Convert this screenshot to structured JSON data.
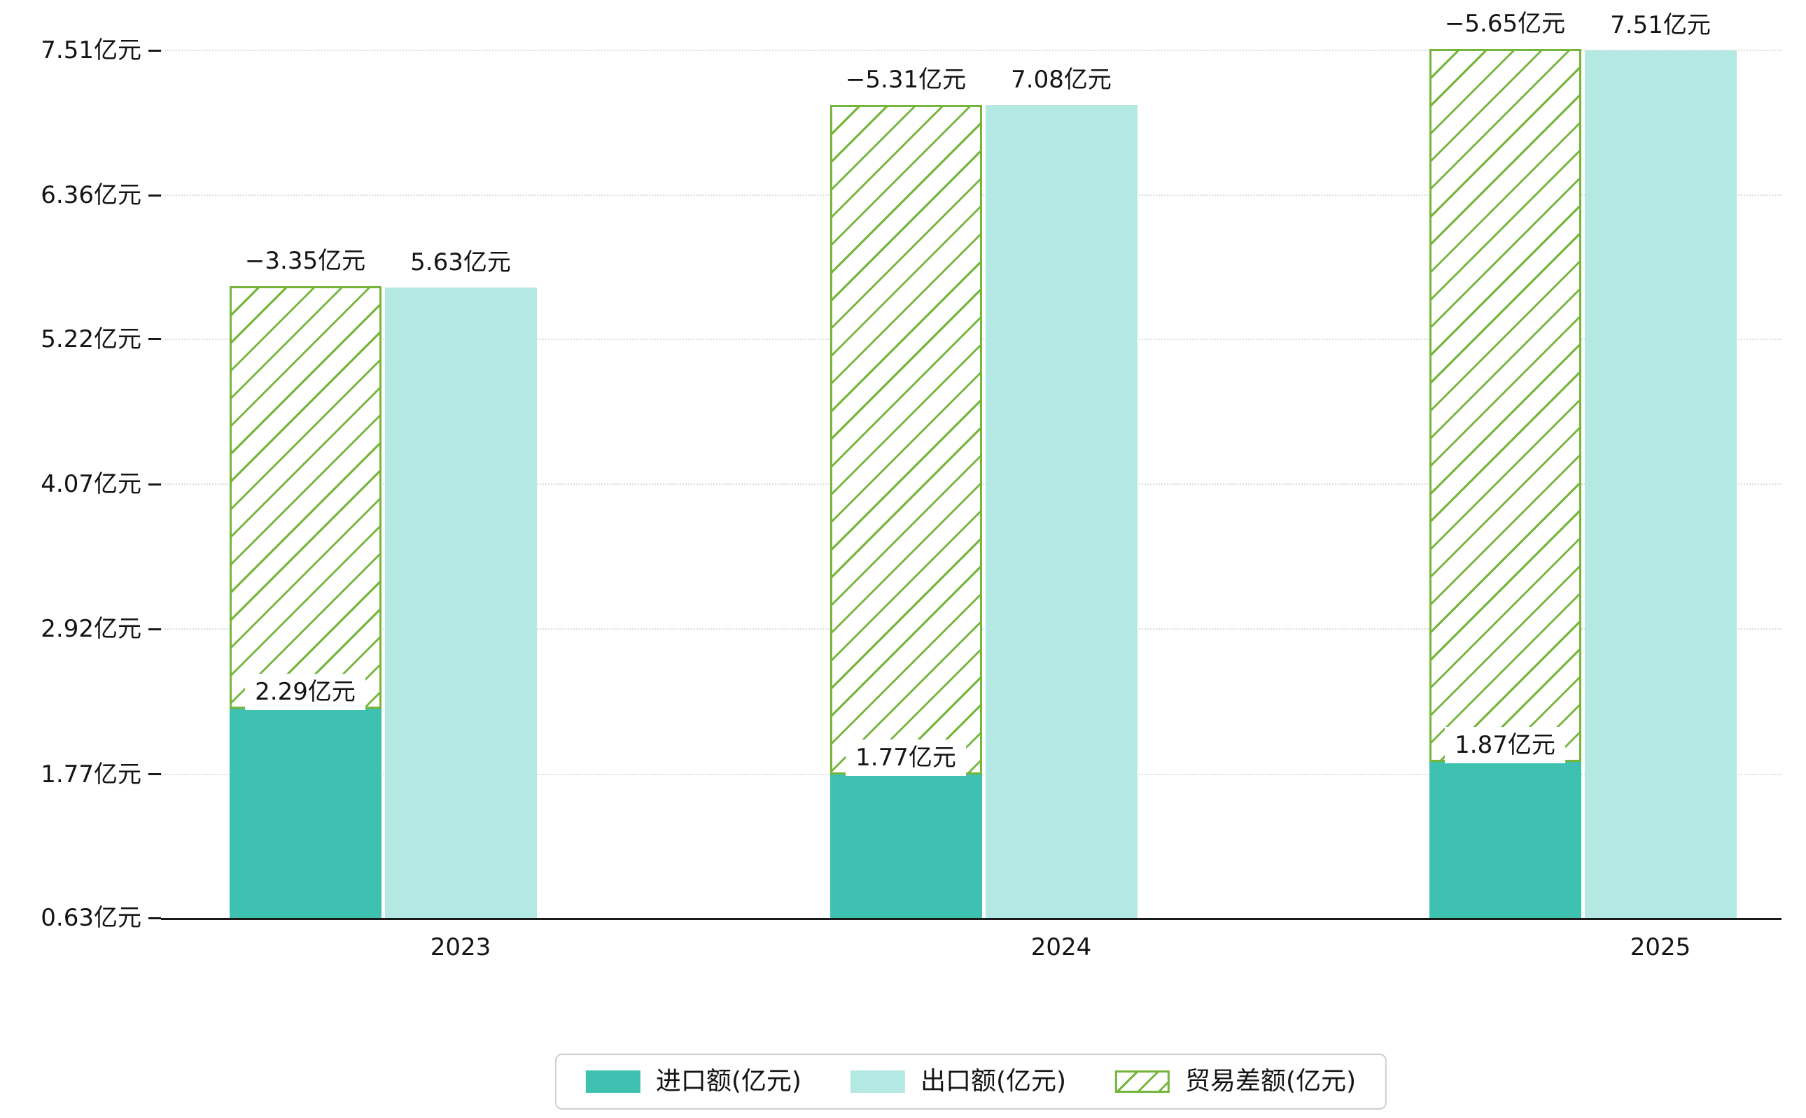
{
  "chart_data": {
    "type": "bar",
    "title": "",
    "categories": [
      "2023",
      "2024",
      "2025"
    ],
    "series": [
      {
        "name": "进口额(亿元)",
        "values": [
          2.29,
          1.77,
          1.87
        ],
        "labels": [
          "2.29亿元",
          "1.77亿元",
          "1.87亿元"
        ],
        "color": "#3fc1b2",
        "style": "solid"
      },
      {
        "name": "出口额(亿元)",
        "values": [
          5.63,
          7.08,
          7.51
        ],
        "labels": [
          "5.63亿元",
          "7.08亿元",
          "7.51亿元"
        ],
        "color": "#b4e8e2",
        "style": "solid"
      },
      {
        "name": "贸易差额(亿元)",
        "values": [
          -3.35,
          -5.31,
          -5.65
        ],
        "labels": [
          "−3.35亿元",
          "−5.31亿元",
          "−5.65亿元"
        ],
        "color": "#74b53a",
        "style": "hatched"
      }
    ],
    "y_ticks": [
      {
        "value": 0.63,
        "label": "0.63亿元"
      },
      {
        "value": 1.77,
        "label": "1.77亿元"
      },
      {
        "value": 2.92,
        "label": "2.92亿元"
      },
      {
        "value": 4.07,
        "label": "4.07亿元"
      },
      {
        "value": 5.22,
        "label": "5.22亿元"
      },
      {
        "value": 6.36,
        "label": "6.36亿元"
      },
      {
        "value": 7.51,
        "label": "7.51亿元"
      }
    ],
    "ylim": [
      0.63,
      7.51
    ],
    "xlabel": "",
    "ylabel": "",
    "grid": "horizontal-dotted",
    "legend_position": "bottom-center"
  }
}
